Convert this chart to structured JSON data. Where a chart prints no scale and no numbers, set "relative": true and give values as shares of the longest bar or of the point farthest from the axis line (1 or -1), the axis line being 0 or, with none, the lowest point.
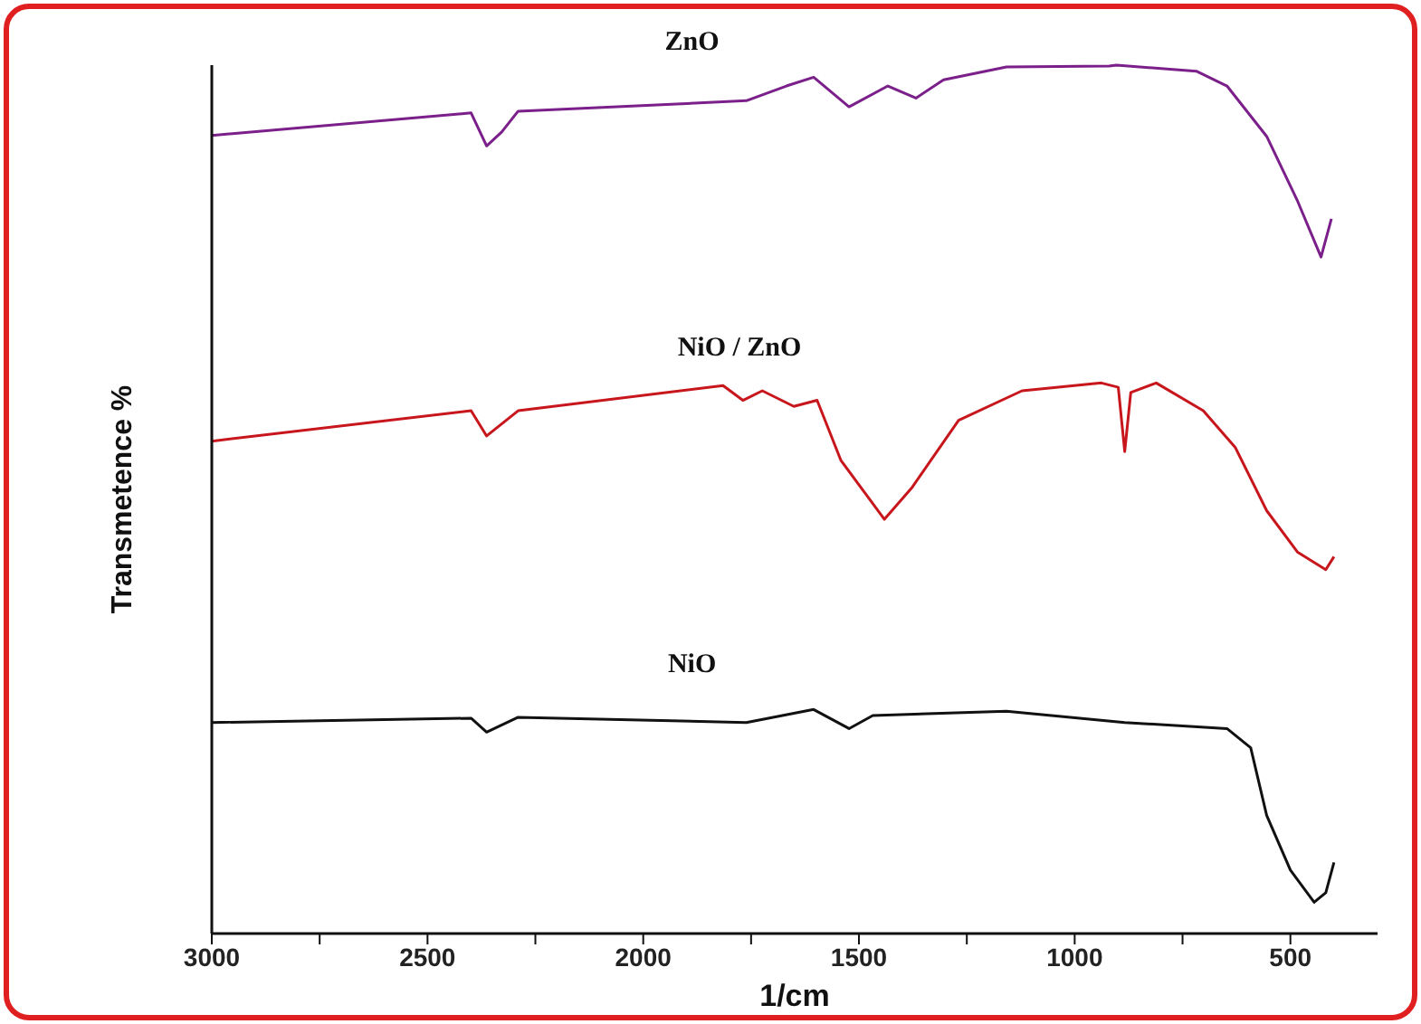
{
  "chart_data": {
    "type": "line",
    "relative": true,
    "xlabel": "1/cm",
    "ylabel": "Transmetence %",
    "xlim": [
      3000,
      298
    ],
    "xticks": [
      3000,
      {
        "value": 2750,
        "label": null
      },
      2500,
      {
        "value": 2250,
        "label": null
      },
      2000,
      {
        "value": 1750,
        "label": null
      },
      1500,
      {
        "value": 1250,
        "label": null
      },
      1000,
      {
        "value": 750,
        "label": null
      },
      500
    ],
    "series": [
      {
        "name": "ZnO",
        "color": "#7b1f8a",
        "x": [
          3000,
          2399,
          2363,
          2328,
          2290,
          1761,
          1668,
          1605,
          1523,
          1433,
          1368,
          1304,
          1158,
          920,
          903,
          718,
          647,
          555,
          483,
          429,
          405
        ],
        "values": [
          0.919,
          0.945,
          0.907,
          0.923,
          0.947,
          0.959,
          0.976,
          0.986,
          0.952,
          0.976,
          0.962,
          0.983,
          0.998,
          0.999,
          1,
          0.993,
          0.976,
          0.918,
          0.843,
          0.779,
          0.823
        ]
      },
      {
        "name": "NiO / ZnO",
        "color": "#c8161d",
        "x": [
          3000,
          2399,
          2363,
          2290,
          1815,
          1769,
          1724,
          1651,
          1597,
          1542,
          1487,
          1441,
          1378,
          1269,
          1122,
          938,
          899,
          884,
          870,
          811,
          702,
          628,
          555,
          483,
          418,
          399
        ],
        "values": [
          0.567,
          0.602,
          0.573,
          0.602,
          0.631,
          0.614,
          0.625,
          0.607,
          0.614,
          0.545,
          0.508,
          0.477,
          0.513,
          0.591,
          0.625,
          0.634,
          0.629,
          0.555,
          0.623,
          0.634,
          0.602,
          0.56,
          0.487,
          0.439,
          0.419,
          0.434
        ]
      },
      {
        "name": "NiO",
        "color": "#111111",
        "x": [
          3000,
          2399,
          2363,
          2290,
          1761,
          1605,
          1523,
          1468,
          1158,
          884,
          647,
          592,
          555,
          500,
          445,
          418,
          399
        ],
        "values": [
          0.243,
          0.248,
          0.232,
          0.249,
          0.243,
          0.258,
          0.236,
          0.251,
          0.256,
          0.243,
          0.236,
          0.214,
          0.136,
          0.073,
          0.036,
          0.047,
          0.082
        ]
      }
    ]
  }
}
